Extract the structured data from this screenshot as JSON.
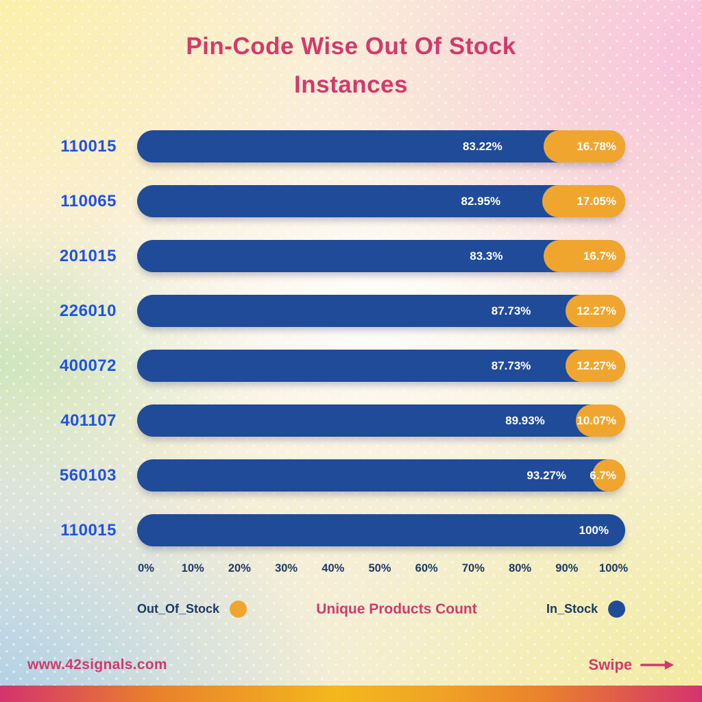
{
  "title": {
    "line1": "Pin-Code Wise Out Of Stock",
    "line2": "Instances"
  },
  "chart_data": {
    "type": "bar",
    "orientation": "horizontal",
    "stacked": true,
    "title": "Pin-Code Wise Out Of Stock Instances",
    "xlabel": "Unique Products Count",
    "categories": [
      "110015",
      "110065",
      "201015",
      "226010",
      "400072",
      "401107",
      "560103",
      "110015"
    ],
    "series": [
      {
        "name": "In_Stock",
        "color": "#1F4B99",
        "values": [
          83.22,
          82.95,
          83.3,
          87.73,
          87.73,
          89.93,
          93.27,
          100
        ]
      },
      {
        "name": "Out_Of_Stock",
        "color": "#F0A62E",
        "values": [
          16.78,
          17.05,
          16.7,
          12.27,
          12.27,
          10.07,
          6.7,
          0
        ]
      }
    ],
    "bar_labels": {
      "in_stock": [
        "83.22%",
        "82.95%",
        "83.3%",
        "87.73%",
        "87.73%",
        "89.93%",
        "93.27%",
        "100%"
      ],
      "out_of_stock": [
        "16.78%",
        "17.05%",
        "16.7%",
        "12.27%",
        "12.27%",
        "10.07%",
        "6.7%",
        ""
      ]
    },
    "x_ticks": [
      "0%",
      "10%",
      "20%",
      "30%",
      "40%",
      "50%",
      "60%",
      "70%",
      "80%",
      "90%",
      "100%"
    ],
    "xlim": [
      0,
      100
    ],
    "grid": false,
    "legend": {
      "position": "bottom",
      "left_label": "Out_Of_Stock",
      "center_label": "Unique Products Count",
      "right_label": "In_Stock"
    }
  },
  "footer": {
    "website": "www.42signals.com",
    "swipe_label": "Swipe"
  },
  "colors": {
    "accent_pink": "#D13A6B",
    "pin_code_blue": "#2052E4",
    "in_stock_blue": "#1F4B99",
    "out_of_stock_orange": "#F0A62E",
    "axis_navy": "#1C3A63",
    "bar_value_text": "#FFFFFF"
  }
}
